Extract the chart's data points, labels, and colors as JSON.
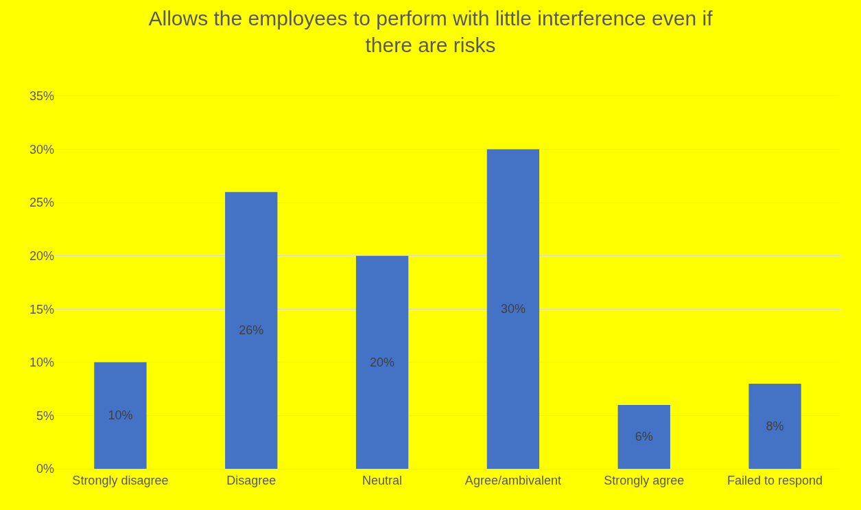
{
  "chart_data": {
    "type": "bar",
    "title": "Allows the employees to perform with little interference even if\nthere are risks",
    "categories": [
      "Strongly disagree",
      "Disagree",
      "Neutral",
      "Agree/ambivalent",
      "Strongly agree",
      "Failed to respond"
    ],
    "values": [
      10,
      26,
      20,
      30,
      6,
      8
    ],
    "color": "#4472c4",
    "value_labels": [
      "10%",
      "26%",
      "20%",
      "30%",
      "6%",
      "8%"
    ],
    "ylim": [
      0,
      35
    ],
    "yticks": [
      {
        "value": 0,
        "label": "0%"
      },
      {
        "value": 5,
        "label": "5%"
      },
      {
        "value": 10,
        "label": "10%"
      },
      {
        "value": 15,
        "label": "15%"
      },
      {
        "value": 20,
        "label": "20%"
      },
      {
        "value": 25,
        "label": "25%"
      },
      {
        "value": 30,
        "label": "30%"
      },
      {
        "value": 35,
        "label": "35%"
      }
    ],
    "grid": "y"
  }
}
